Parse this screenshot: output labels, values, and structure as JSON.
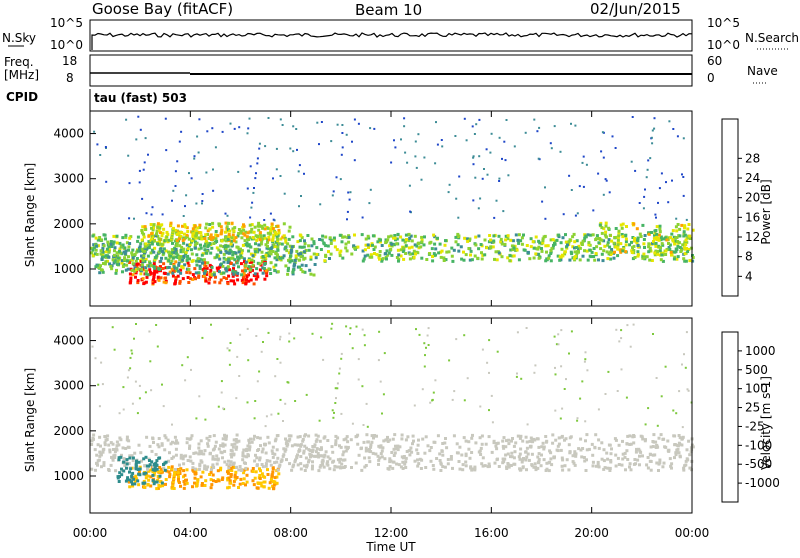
{
  "header": {
    "station": "Goose Bay (fitACF)",
    "beam": "Beam 10",
    "date": "02/Jun/2015"
  },
  "left_labels": {
    "nsky": "N.Sky",
    "nsky_hi": "10^5",
    "nsky_lo": "10^0",
    "freq_line1": "Freq.",
    "freq_line2": "[MHz]",
    "freq_hi": "18",
    "freq_lo": "8",
    "cpid": "CPID",
    "cpid_text": "tau (fast) 503"
  },
  "right_labels": {
    "nsearch": "N.Search",
    "nsearch_hi": "10^5",
    "nsearch_lo": "10^0",
    "nave": "Nave",
    "nave_hi": "60",
    "nave_lo": "0"
  },
  "time_axis": {
    "ticks": [
      "00:00",
      "04:00",
      "08:00",
      "12:00",
      "16:00",
      "20:00",
      "00:00"
    ],
    "label": "Time UT"
  },
  "power_panel": {
    "ylabel": "Slant Range [km]",
    "yticks": [
      "1000",
      "2000",
      "3000",
      "4000"
    ],
    "colorbar_label": "Power [dB]",
    "colorbar_ticks": [
      "4",
      "8",
      "12",
      "16",
      "20",
      "24",
      "28"
    ],
    "colors": [
      "#0000ff",
      "#1e46c8",
      "#3c8c96",
      "#46b464",
      "#8cd232",
      "#e6e600",
      "#ffa000",
      "#ff5000",
      "#ff0000"
    ]
  },
  "velocity_panel": {
    "ylabel": "Slant Range [km]",
    "yticks": [
      "1000",
      "2000",
      "3000",
      "4000"
    ],
    "colorbar_label": "Velocity [m s-1]",
    "colorbar_ticks": [
      "1000",
      "500",
      "100",
      "25",
      "-25",
      "-100",
      "-500",
      "-1000"
    ],
    "colors": [
      "#1e3cc8",
      "#2d8c8c",
      "#46aa46",
      "#7dc83c",
      "#c8c8be",
      "#ffc800",
      "#ff9600",
      "#ff5a00",
      "#ff0000"
    ]
  },
  "chart_data": {
    "type": "heatmap",
    "x": {
      "label": "Time UT",
      "range_hours": [
        0,
        24
      ],
      "ticks_hours": [
        0,
        4,
        8,
        12,
        16,
        20,
        24
      ]
    },
    "y": {
      "label": "Slant Range [km]",
      "range_km": [
        180,
        4500
      ],
      "ticks": [
        1000,
        2000,
        3000,
        4000
      ]
    },
    "power_scale_db": [
      0,
      30
    ],
    "velocity_scale_ms": [
      -1000,
      1000
    ],
    "power_bands": [
      {
        "t_start": 0.0,
        "t_end": 24.0,
        "range_center_km": 1500,
        "range_width_km": 300,
        "power_db": 14
      },
      {
        "t_start": 1.5,
        "t_end": 7.0,
        "range_center_km": 950,
        "range_width_km": 250,
        "power_db": 27
      },
      {
        "t_start": 2.0,
        "t_end": 8.0,
        "range_center_km": 1850,
        "range_width_km": 200,
        "power_db": 18
      },
      {
        "t_start": 0.0,
        "t_end": 9.0,
        "range_center_km": 1250,
        "range_width_km": 350,
        "power_db": 12
      },
      {
        "t_start": 20.0,
        "t_end": 24.0,
        "range_center_km": 1700,
        "range_width_km": 350,
        "power_db": 16
      }
    ],
    "velocity_bands": [
      {
        "t_start": 1.5,
        "t_end": 7.5,
        "range_center_km": 1000,
        "range_width_km": 250,
        "velocity_ms": -100
      },
      {
        "t_start": 0.0,
        "t_end": 24.0,
        "range_center_km": 1550,
        "range_width_km": 400,
        "velocity_ms": 0
      },
      {
        "t_start": 1.0,
        "t_end": 3.0,
        "range_center_km": 1150,
        "range_width_km": 300,
        "velocity_ms": 120
      }
    ]
  }
}
